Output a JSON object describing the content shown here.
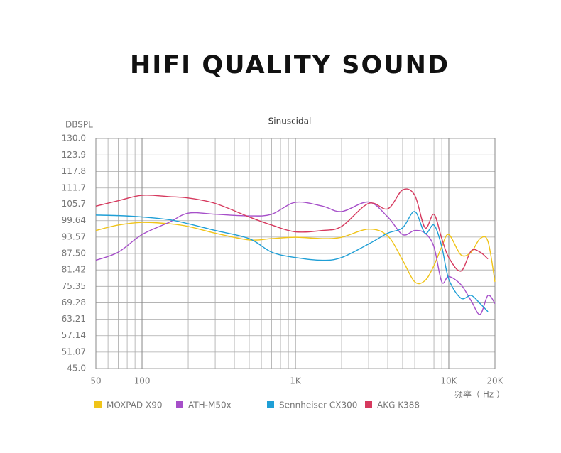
{
  "chart_data": {
    "type": "line",
    "title": "HIFI QUALITY SOUND",
    "subtitle": "Sinuscidal",
    "y_label": "DBSPL",
    "x_label": "频率（ Hz ）",
    "x_scale": "log",
    "xlim": [
      50,
      20000
    ],
    "xticks": [
      50,
      100,
      {
        "value": 1000,
        "label": "1K"
      },
      {
        "value": 10000,
        "label": "10K"
      },
      {
        "value": 20000,
        "label": "20K"
      }
    ],
    "xgrid": [
      60,
      70,
      80,
      90,
      200,
      300,
      400,
      500,
      600,
      700,
      800,
      900,
      2000,
      3000,
      4000,
      5000,
      6000,
      7000,
      8000,
      9000
    ],
    "ylim": [
      45,
      130
    ],
    "yticks": [
      {
        "value": 45,
        "label": "45.0"
      },
      51.07,
      57.14,
      63.21,
      69.28,
      75.35,
      81.42,
      {
        "value": 87.5,
        "label": "87.50"
      },
      93.57,
      99.64,
      105.7,
      111.7,
      117.8,
      123.9,
      {
        "value": 130,
        "label": "130.0"
      }
    ],
    "grid": true,
    "x": [
      50,
      70,
      100,
      150,
      200,
      300,
      500,
      700,
      1000,
      1500,
      2000,
      3000,
      4000,
      5000,
      6000,
      7000,
      8000,
      9000,
      10000,
      12000,
      14000,
      16000,
      18000,
      20000
    ],
    "series": [
      {
        "name": "MOXPAD X90",
        "color": "#f0c419",
        "values": [
          96,
          98,
          99,
          98.5,
          97.5,
          95,
          92.5,
          93,
          93.5,
          93,
          93.5,
          96.5,
          94,
          85,
          77,
          77.5,
          83,
          90,
          94.5,
          87,
          88,
          93,
          92,
          77
        ]
      },
      {
        "name": "ATH-M50x",
        "color": "#a64fc9",
        "values": [
          85,
          88,
          94.5,
          99,
          102.4,
          102,
          101.4,
          102,
          106.4,
          105,
          103,
          106.5,
          101,
          94.5,
          96,
          95,
          90,
          77,
          79,
          76,
          70,
          65,
          72,
          69
        ]
      },
      {
        "name": "Sennheiser CX300",
        "color": "#1f9fd6",
        "values": [
          101.7,
          101.5,
          101,
          100,
          98.5,
          96,
          93,
          88,
          86,
          85,
          86,
          91,
          95,
          97,
          103,
          95,
          98,
          90,
          78,
          71,
          72,
          69,
          66,
          null
        ]
      },
      {
        "name": "AKG K388",
        "color": "#d6395e",
        "values": [
          105,
          107,
          109,
          108.5,
          108,
          106,
          101,
          98,
          95.5,
          96,
          97.5,
          106,
          104,
          111,
          109,
          97,
          102,
          93,
          86,
          81,
          88.5,
          88,
          85.5,
          null
        ]
      }
    ]
  }
}
